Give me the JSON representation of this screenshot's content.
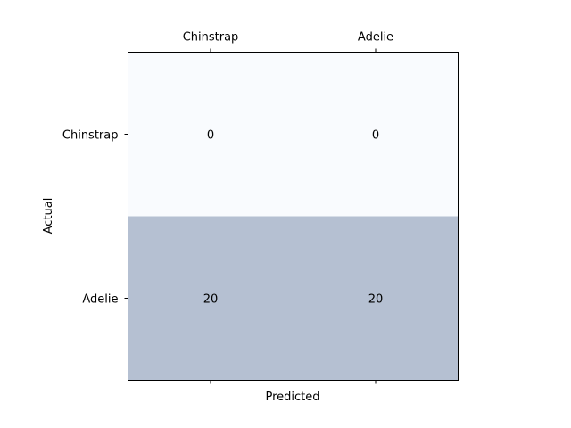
{
  "chart_data": {
    "type": "heatmap",
    "title": "",
    "xlabel": "Predicted",
    "ylabel": "Actual",
    "x_categories": [
      "Chinstrap",
      "Adelie"
    ],
    "y_categories": [
      "Chinstrap",
      "Adelie"
    ],
    "x_tick_labels_position": "top",
    "values": [
      [
        0,
        0
      ],
      [
        20,
        20
      ]
    ],
    "colors": {
      "low": "#f9fbfe",
      "high": "#b5c0d2",
      "text": "#000000",
      "frame": "#000000"
    },
    "grid": false,
    "legend": "none"
  }
}
